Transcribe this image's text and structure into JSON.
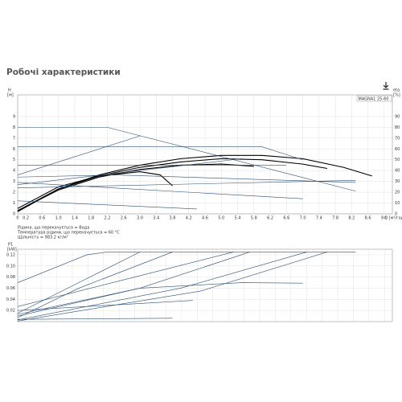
{
  "header": {
    "title": "Робочі характеристики"
  },
  "notes": [
    "Рідина, що перекачується = Вода",
    "Температура рідини, що перекачується = 60 °C",
    "Щільність = 983.2 кг/м³"
  ],
  "chart_data": [
    {
      "type": "line",
      "label": "MAGNA1 25-60",
      "ylabel": "H",
      "yunit": "[м]",
      "y2label": "eta",
      "y2unit": "[%]",
      "xlabel": "Q [м³/год]",
      "xlim": [
        0,
        9.2
      ],
      "ylim": [
        0,
        11
      ],
      "y2lim": [
        0,
        110
      ],
      "grid": true,
      "xticks": [
        0,
        0.2,
        0.6,
        {
          "value": 1,
          "label": "1.0"
        },
        1.4,
        1.8,
        2.2,
        2.6,
        {
          "value": 3,
          "label": "3.0"
        },
        3.4,
        3.8,
        4.2,
        4.6,
        {
          "value": 5,
          "label": "5.0"
        },
        5.4,
        5.8,
        6.2,
        6.6,
        {
          "value": 7,
          "label": "7.0"
        },
        7.4,
        7.8,
        8.2,
        8.6,
        {
          "value": 9,
          "label": "9.0"
        }
      ],
      "yticks": [
        0,
        1,
        2,
        3,
        4,
        5,
        6,
        7,
        8,
        9
      ],
      "y2ticks": [
        0,
        10,
        20,
        30,
        40,
        50,
        60,
        70,
        80,
        90
      ],
      "series": [
        {
          "color": "#000000",
          "x": [
            0,
            1,
            2,
            3,
            4,
            5,
            6,
            7,
            8,
            8.7
          ],
          "values": [
            0.2,
            2.3,
            3.6,
            4.5,
            5.1,
            5.4,
            5.4,
            5.1,
            4.3,
            3.5
          ]
        },
        {
          "color": "#000000",
          "x": [
            0,
            1,
            2,
            3,
            4,
            5,
            6,
            7,
            7.6
          ],
          "values": [
            0.3,
            2.3,
            3.5,
            4.3,
            4.8,
            5.1,
            5.0,
            4.6,
            4.2
          ]
        },
        {
          "color": "#000000",
          "x": [
            0,
            1,
            2,
            3,
            4,
            5,
            5.8
          ],
          "values": [
            0.3,
            2.2,
            3.4,
            4.1,
            4.5,
            4.6,
            4.4
          ]
        },
        {
          "color": "#000000",
          "x": [
            0,
            1,
            2,
            3,
            3.5,
            3.8
          ],
          "values": [
            0.5,
            2.5,
            3.5,
            3.9,
            3.6,
            2.6
          ]
        },
        {
          "color": "#2b4f72",
          "x": [
            0,
            2.2,
            8.3
          ],
          "values": [
            8,
            8,
            2.1
          ]
        },
        {
          "color": "#2b4f72",
          "x": [
            0,
            6.0,
            7.0
          ],
          "values": [
            6.2,
            6.2,
            5.0
          ]
        },
        {
          "color": "#2b4f72",
          "x": [
            0,
            6.6
          ],
          "values": [
            4.5,
            4.5
          ]
        },
        {
          "color": "#2b4f72",
          "x": [
            0,
            2.4,
            8.3
          ],
          "values": [
            3.4,
            3.6,
            2.9
          ]
        },
        {
          "color": "#2b4f72",
          "x": [
            0,
            7.0
          ],
          "values": [
            2.9,
            1.4
          ]
        },
        {
          "color": "#2b4f72",
          "x": [
            0,
            4.4
          ],
          "values": [
            1.2,
            0.45
          ]
        },
        {
          "color": "#2b4f72",
          "axis": "y2",
          "x": [
            0,
            3.0
          ],
          "values": [
            36,
            72
          ]
        },
        {
          "color": "#2b4f72",
          "axis": "y2",
          "x": [
            0,
            8.3
          ],
          "values": [
            24,
            31
          ]
        },
        {
          "color": "#2b4f72",
          "axis": "y2",
          "x": [
            0,
            5.5
          ],
          "values": [
            27,
            51
          ]
        }
      ]
    },
    {
      "type": "line",
      "ylabel": "P1",
      "yunit": "[kW]",
      "xlim": [
        0,
        9.2
      ],
      "ylim": [
        0,
        0.13
      ],
      "grid": true,
      "yticks": [
        0.02,
        0.04,
        0.06,
        0.08,
        {
          "value": 0.1,
          "label": "0.10"
        },
        0.12
      ],
      "series": [
        {
          "color": "#2b4f72",
          "x": [
            0,
            1.7,
            2.2,
            8.3
          ],
          "values": [
            0.07,
            0.12,
            0.125,
            0.125
          ]
        },
        {
          "color": "#2b4f72",
          "x": [
            0,
            1.5,
            3.0
          ],
          "values": [
            0.015,
            0.07,
            0.125
          ]
        },
        {
          "color": "#2b4f72",
          "x": [
            0,
            1.5,
            3.8
          ],
          "values": [
            0.007,
            0.06,
            0.125
          ]
        },
        {
          "color": "#2b4f72",
          "x": [
            0,
            2.6,
            5.3
          ],
          "values": [
            0.027,
            0.075,
            0.125
          ]
        },
        {
          "color": "#2b4f72",
          "x": [
            0,
            3.0,
            5.7
          ],
          "values": [
            0.013,
            0.06,
            0.125
          ]
        },
        {
          "color": "#2b4f72",
          "x": [
            0,
            4.0,
            7.1
          ],
          "values": [
            0.003,
            0.06,
            0.125
          ]
        },
        {
          "color": "#2b4f72",
          "x": [
            0,
            4.5,
            7.6
          ],
          "values": [
            0.001,
            0.055,
            0.125
          ]
        },
        {
          "color": "#2b4f72",
          "x": [
            0,
            3.0,
            5.5,
            7.0
          ],
          "values": [
            0.01,
            0.06,
            0.07,
            0.069
          ]
        },
        {
          "color": "#2b4f72",
          "x": [
            0,
            3.8
          ],
          "values": [
            0.004,
            0.006
          ]
        },
        {
          "color": "#2b4f72",
          "x": [
            0,
            4.3
          ],
          "values": [
            0.02,
            0.038
          ]
        }
      ]
    }
  ]
}
